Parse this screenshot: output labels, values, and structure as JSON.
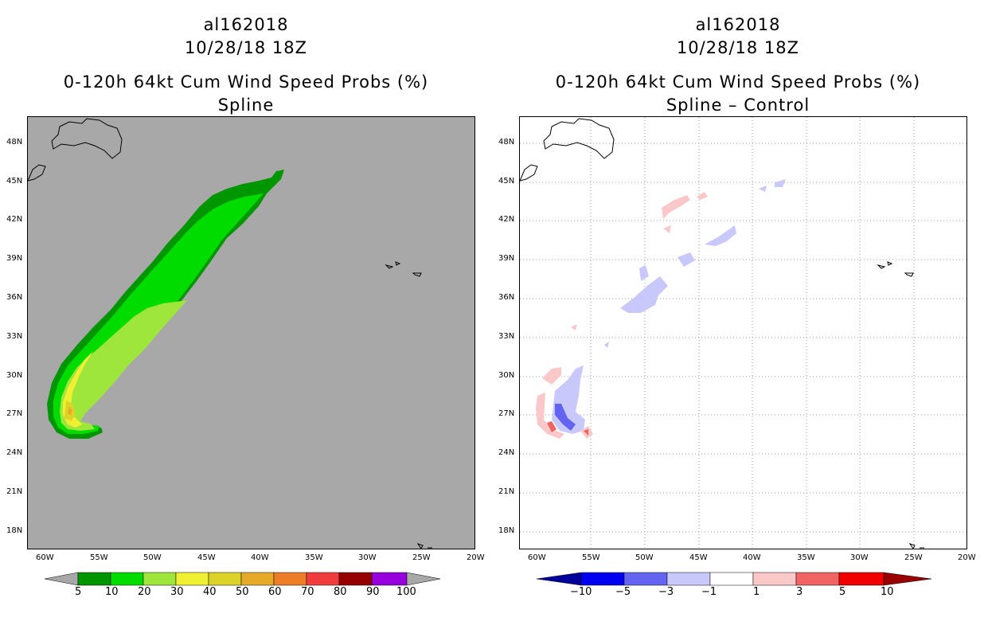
{
  "left_panel": {
    "storm_id": "al162018",
    "datetime": "10/28/18 18Z",
    "product": "0-120h 64kt Cum Wind Speed Probs (%)",
    "subtitle": "Spline",
    "background_color": "#a8a8a8",
    "lat_labels": [
      "48N",
      "45N",
      "42N",
      "39N",
      "36N",
      "33N",
      "30N",
      "27N",
      "24N",
      "21N",
      "18N"
    ],
    "lon_labels": [
      "60W",
      "55W",
      "50W",
      "45W",
      "40W",
      "35W",
      "30W",
      "25W",
      "20W"
    ],
    "colorbar": {
      "labels": [
        "5",
        "10",
        "20",
        "30",
        "40",
        "50",
        "60",
        "70",
        "80",
        "90",
        "100"
      ],
      "colors": [
        "#009600",
        "#00dc00",
        "#9fe63c",
        "#f0f032",
        "#dcd228",
        "#e6aa28",
        "#ee7d28",
        "#f03c3c",
        "#960000",
        "#9600dc"
      ]
    }
  },
  "right_panel": {
    "storm_id": "al162018",
    "datetime": "10/28/18 18Z",
    "product": "0-120h 64kt Cum Wind Speed Probs (%)",
    "subtitle": "Spline – Control",
    "background_color": "#ffffff",
    "lat_labels": [
      "48N",
      "45N",
      "42N",
      "39N",
      "36N",
      "33N",
      "30N",
      "27N",
      "24N",
      "21N",
      "18N"
    ],
    "lon_labels": [
      "60W",
      "55W",
      "50W",
      "45W",
      "40W",
      "35W",
      "30W",
      "25W",
      "20W"
    ],
    "colorbar": {
      "labels": [
        "−10",
        "−5",
        "−3",
        "−1",
        "1",
        "3",
        "5",
        "10"
      ],
      "colors": [
        "#00009b",
        "#0000f0",
        "#6464f0",
        "#c8c8fa",
        "#ffffff",
        "#fac8c8",
        "#f06464",
        "#f00000",
        "#9b0000"
      ]
    }
  }
}
